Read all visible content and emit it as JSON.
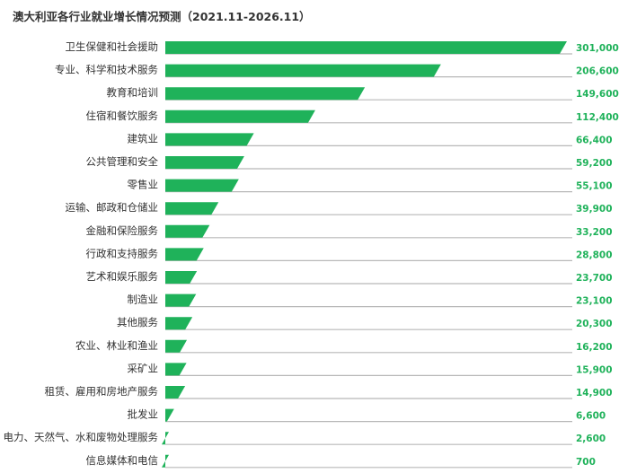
{
  "chart_data": {
    "type": "bar",
    "orientation": "horizontal",
    "title": "澳大利亚各行业就业增长情况预测（2021.11-2026.11）",
    "categories": [
      "卫生保健和社会援助",
      "专业、科学和技术服务",
      "教育和培训",
      "住宿和餐饮服务",
      "建筑业",
      "公共管理和安全",
      "零售业",
      "运输、邮政和仓储业",
      "金融和保险服务",
      "行政和支持服务",
      "艺术和娱乐服务",
      "制造业",
      "其他服务",
      "农业、林业和渔业",
      "采矿业",
      "租赁、雇用和房地产服务",
      "批发业",
      "电力、天然气、水和废物处理服务",
      "信息媒体和电信"
    ],
    "values": [
      301000,
      206600,
      149600,
      112400,
      66400,
      59200,
      55100,
      39900,
      33200,
      28800,
      23700,
      23100,
      20300,
      16200,
      15900,
      14900,
      6600,
      2600,
      700
    ],
    "value_labels": [
      "301,000",
      "206,600",
      "149,600",
      "112,400",
      "66,400",
      "59,200",
      "55,100",
      "39,900",
      "33,200",
      "28,800",
      "23,700",
      "23,100",
      "20,300",
      "16,200",
      "15,900",
      "14,900",
      "6,600",
      "2,600",
      "700"
    ],
    "xlim": [
      0,
      301000
    ],
    "grid": false,
    "legend": "none",
    "colors": {
      "bar": "#1fb25a",
      "line": "#b8b8b8",
      "label": "#1fb25a",
      "category_text": "#333333"
    }
  }
}
